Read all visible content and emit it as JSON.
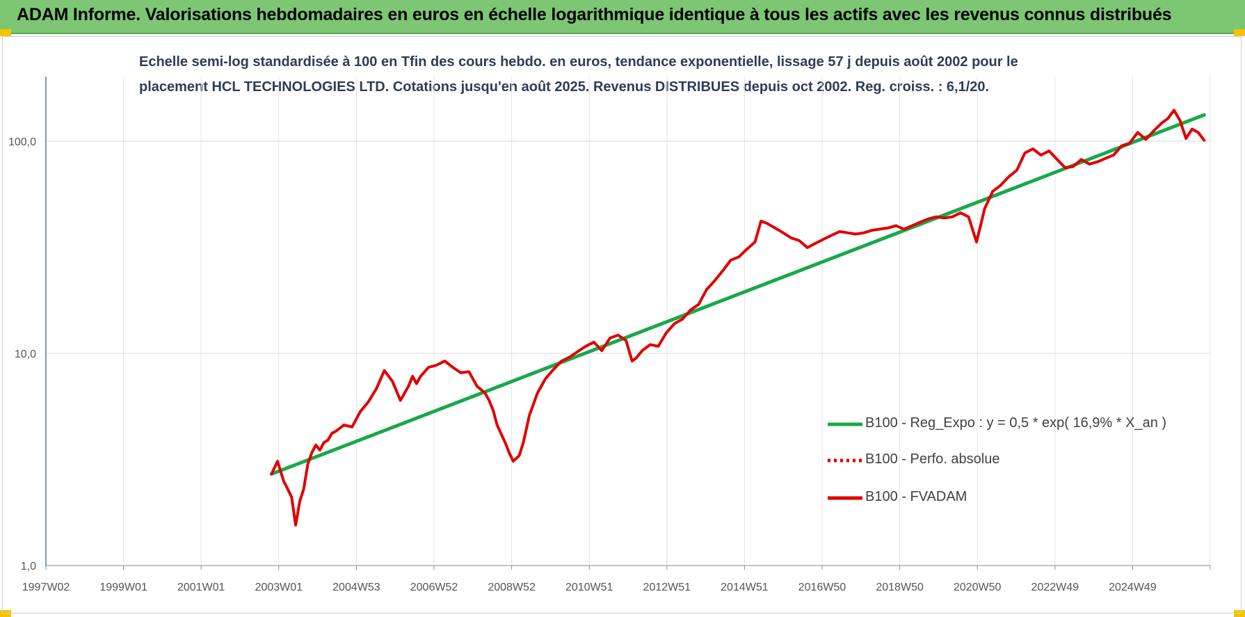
{
  "header": {
    "title": "ADAM Informe. Valorisations hebdomadaires en euros en échelle logarithmique identique à tous les actifs avec les revenus connus distribués"
  },
  "subtitle": {
    "line1": "Echelle semi-log standardisée à 100 en Tfin des cours hebdo. en euros, tendance exponentielle, lissage 57 j depuis août 2002 pour le",
    "line2": "placement HCL TECHNOLOGIES LTD. Cotations jusqu'en août 2025. Revenus DISTRIBUES depuis oct 2002. Reg. croiss. : 6,1/20."
  },
  "chart_data": {
    "type": "line",
    "y_scale": "log",
    "ylim": [
      1,
      180
    ],
    "y_ticks": [
      "1,0",
      "10,0",
      "100,0"
    ],
    "x_range_years": [
      1997.0,
      2025.9
    ],
    "x_ticks": [
      "1997W02",
      "1999W01",
      "2001W01",
      "2003W01",
      "2004W53",
      "2006W52",
      "2008W52",
      "2010W51",
      "2012W51",
      "2014W51",
      "2016W50",
      "2018W50",
      "2020W50",
      "2022W49",
      "2024W49"
    ],
    "grid": true,
    "legend_position": "right",
    "series": [
      {
        "name": "B100 - Reg_Expo : y = 0,5 * exp( 16,9% *  X_an )",
        "color": "#19a84a",
        "style": "solid",
        "x": [
          2002.6,
          2025.75
        ],
        "y": [
          2.7,
          133
        ]
      },
      {
        "name": "B100 - Perfo. absolue",
        "color": "#e00000",
        "style": "dotted",
        "x": [],
        "y": []
      },
      {
        "name": "B100 - FVADAM",
        "color": "#e00000",
        "style": "solid",
        "x": [
          2002.6,
          2002.75,
          2002.9,
          2003.0,
          2003.1,
          2003.2,
          2003.3,
          2003.4,
          2003.5,
          2003.6,
          2003.7,
          2003.8,
          2003.9,
          2004.0,
          2004.1,
          2004.2,
          2004.4,
          2004.6,
          2004.8,
          2005.0,
          2005.2,
          2005.4,
          2005.6,
          2005.8,
          2006.0,
          2006.1,
          2006.2,
          2006.3,
          2006.5,
          2006.7,
          2006.9,
          2007.1,
          2007.3,
          2007.5,
          2007.7,
          2007.9,
          2008.0,
          2008.1,
          2008.2,
          2008.4,
          2008.5,
          2008.6,
          2008.75,
          2008.85,
          2009.0,
          2009.2,
          2009.4,
          2009.6,
          2009.8,
          2010.0,
          2010.2,
          2010.4,
          2010.6,
          2010.8,
          2011.0,
          2011.2,
          2011.4,
          2011.55,
          2011.65,
          2011.8,
          2012.0,
          2012.2,
          2012.4,
          2012.6,
          2012.8,
          2013.0,
          2013.2,
          2013.4,
          2013.6,
          2013.8,
          2014.0,
          2014.2,
          2014.4,
          2014.6,
          2014.75,
          2014.9,
          2015.1,
          2015.3,
          2015.5,
          2015.7,
          2015.9,
          2016.1,
          2016.3,
          2016.5,
          2016.7,
          2016.9,
          2017.1,
          2017.3,
          2017.5,
          2017.7,
          2017.9,
          2018.1,
          2018.3,
          2018.5,
          2018.7,
          2018.9,
          2019.1,
          2019.3,
          2019.5,
          2019.7,
          2019.9,
          2020.1,
          2020.2,
          2020.3,
          2020.5,
          2020.7,
          2020.9,
          2021.1,
          2021.3,
          2021.5,
          2021.7,
          2021.9,
          2022.1,
          2022.3,
          2022.5,
          2022.7,
          2022.9,
          2023.1,
          2023.3,
          2023.5,
          2023.7,
          2023.9,
          2024.1,
          2024.3,
          2024.5,
          2024.7,
          2024.85,
          2025.0,
          2025.15,
          2025.3,
          2025.45,
          2025.6,
          2025.75
        ],
        "y": [
          2.7,
          3.1,
          2.5,
          2.3,
          2.1,
          1.55,
          2.0,
          2.3,
          3.0,
          3.4,
          3.7,
          3.5,
          3.8,
          3.9,
          4.2,
          4.3,
          4.6,
          4.5,
          5.3,
          5.9,
          6.8,
          8.3,
          7.4,
          6.0,
          7.0,
          7.8,
          7.2,
          7.8,
          8.6,
          8.8,
          9.2,
          8.6,
          8.1,
          8.2,
          7.0,
          6.5,
          6.0,
          5.4,
          4.6,
          3.8,
          3.4,
          3.1,
          3.3,
          3.8,
          5.1,
          6.5,
          7.6,
          8.4,
          9.2,
          9.6,
          10.2,
          10.8,
          11.3,
          10.3,
          11.8,
          12.2,
          11.5,
          9.2,
          9.5,
          10.3,
          11.0,
          10.8,
          12.5,
          13.8,
          14.5,
          16.0,
          17.0,
          20.0,
          22.0,
          24.5,
          27.5,
          28.5,
          31.0,
          33.5,
          42.0,
          41.0,
          39.0,
          37.0,
          35.0,
          34.0,
          31.5,
          33.0,
          34.5,
          36.0,
          37.5,
          37.0,
          36.5,
          37.0,
          38.0,
          38.5,
          39.0,
          40.0,
          38.5,
          40.0,
          41.5,
          43.0,
          44.0,
          43.5,
          44.0,
          46.0,
          44.0,
          33.5,
          40.0,
          48.0,
          58.0,
          62.0,
          68.0,
          73.0,
          88.0,
          92.0,
          86.0,
          90.0,
          82.0,
          75.0,
          76.0,
          82.0,
          78.0,
          80.0,
          83.0,
          86.0,
          95.0,
          98.0,
          110.0,
          102.0,
          112.0,
          122.0,
          128.0,
          140.0,
          125.0,
          103.0,
          114.0,
          110.0,
          101.0
        ]
      }
    ],
    "legend": [
      {
        "label": "B100 - Reg_Expo : y = 0,5 * exp( 16,9% *  X_an )",
        "color": "#19a84a",
        "style": "solid"
      },
      {
        "label": "B100 - Perfo. absolue",
        "color": "#e00000",
        "style": "dotted"
      },
      {
        "label": "B100 - FVADAM",
        "color": "#e00000",
        "style": "solid"
      }
    ]
  }
}
